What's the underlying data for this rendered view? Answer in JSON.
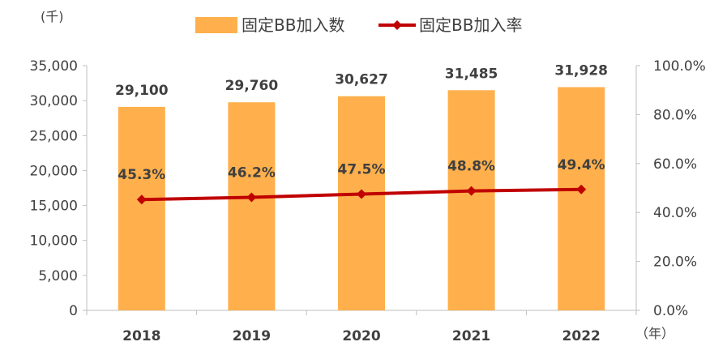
{
  "chart_data": {
    "type": "bar",
    "categories": [
      "2018",
      "2019",
      "2020",
      "2021",
      "2022"
    ],
    "series": [
      {
        "name": "固定BB加入数",
        "type": "bar",
        "axis": "left",
        "values": [
          29100,
          29760,
          30627,
          31485,
          31928
        ],
        "labels": [
          "29,100",
          "29,760",
          "30,627",
          "31,485",
          "31,928"
        ],
        "color": "#FFB04C"
      },
      {
        "name": "固定BB加入率",
        "type": "line",
        "axis": "right",
        "values": [
          45.3,
          46.2,
          47.5,
          48.8,
          49.4
        ],
        "labels": [
          "45.3%",
          "46.2%",
          "47.5%",
          "48.8%",
          "49.4%"
        ],
        "color": "#C00000",
        "marker": "diamond"
      }
    ],
    "y_left": {
      "unit": "(千)",
      "range": [
        0,
        35000
      ],
      "ticks": [
        "35,000",
        "30,000",
        "25,000",
        "20,000",
        "15,000",
        "10,000",
        "5,000",
        "0"
      ]
    },
    "y_right": {
      "range": [
        0,
        100
      ],
      "ticks": [
        "100.0%",
        "80.0%",
        "60.0%",
        "40.0%",
        "20.0%",
        "0.0%"
      ]
    },
    "x_unit": "（年）",
    "legend_position": "top",
    "grid": false
  }
}
